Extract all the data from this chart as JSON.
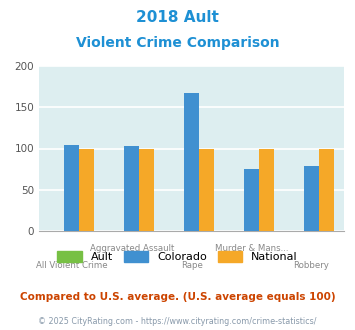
{
  "title_line1": "2018 Ault",
  "title_line2": "Violent Crime Comparison",
  "title_color": "#1e90d4",
  "categories": [
    "All Violent Crime",
    "Aggravated Assault",
    "Rape",
    "Murder & Mans...",
    "Robbery"
  ],
  "ault_values": [
    0,
    0,
    0,
    0,
    0
  ],
  "colorado_values": [
    104,
    103,
    167,
    75,
    79
  ],
  "national_values": [
    100,
    100,
    100,
    100,
    100
  ],
  "ault_color": "#77c044",
  "colorado_color": "#4090d0",
  "national_color": "#f5a828",
  "ylim": [
    0,
    200
  ],
  "yticks": [
    0,
    50,
    100,
    150,
    200
  ],
  "legend_labels": [
    "Ault",
    "Colorado",
    "National"
  ],
  "bg_color": "#ddeef0",
  "footnote1": "Compared to U.S. average. (U.S. average equals 100)",
  "footnote2": "© 2025 CityRating.com - https://www.cityrating.com/crime-statistics/",
  "footnote1_color": "#cc4400",
  "footnote2_color": "#8899aa",
  "row1_labels": [
    "",
    "Aggravated Assault",
    "",
    "Murder & Mans...",
    ""
  ],
  "row2_labels": [
    "All Violent Crime",
    "",
    "Rape",
    "",
    "Robbery"
  ]
}
